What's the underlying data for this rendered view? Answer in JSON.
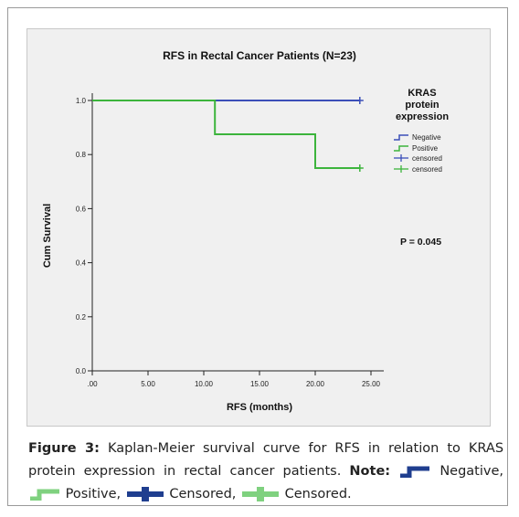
{
  "chart_data": {
    "type": "line",
    "title": "RFS in Rectal Cancer Patients (N=23)",
    "xlabel": "RFS (months)",
    "ylabel": "Cum Survival",
    "xlim": [
      0,
      25
    ],
    "ylim": [
      0,
      1.0
    ],
    "x_ticks": [
      ".00",
      "5.00",
      "10.00",
      "15.00",
      "20.00",
      "25.00"
    ],
    "y_ticks": [
      "0.0",
      "0.2",
      "0.4",
      "0.6",
      "0.8",
      "1.0"
    ],
    "legend_title": "KRAS protein expression",
    "legend_entries": [
      "Negative",
      "Positive",
      "censored",
      "censored"
    ],
    "legend_position": "top-right",
    "annotation": "P = 0.045",
    "series": [
      {
        "name": "Negative",
        "color": "#3b4fb8",
        "x": [
          0,
          24
        ],
        "y": [
          1.0,
          1.0
        ],
        "censored": [
          {
            "x": 24,
            "y": 1.0
          }
        ]
      },
      {
        "name": "Positive",
        "color": "#3cb43c",
        "x": [
          0,
          11,
          11,
          20,
          20,
          24
        ],
        "y": [
          1.0,
          1.0,
          0.875,
          0.875,
          0.75,
          0.75
        ],
        "censored": [
          {
            "x": 24,
            "y": 0.75
          }
        ]
      }
    ]
  },
  "caption": {
    "label": "Figure 3:",
    "text": "Kaplan-Meier survival curve for RFS in relation to KRAS protein expression in rectal cancer patients.",
    "note_label": "Note:",
    "items": [
      "Negative,",
      "Positive,",
      "Censored,",
      "Censored."
    ],
    "colors": {
      "negative": "#1f3e8f",
      "positive": "#7fd17f",
      "censored_neg": "#1f3e8f",
      "censored_pos": "#7fd17f"
    }
  }
}
